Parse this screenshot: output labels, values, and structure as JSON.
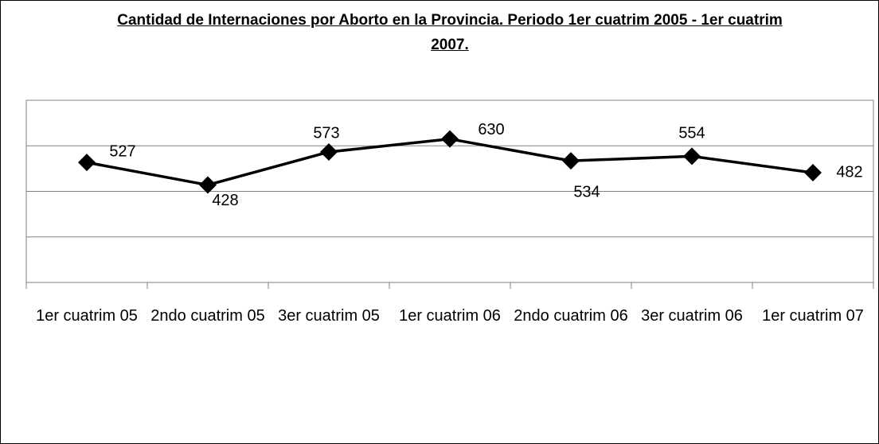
{
  "chart_data": {
    "type": "line",
    "title": "Cantidad de Internaciones por Aborto en la Provincia. Periodo 1er cuatrim 2005 - 1er cuatrim 2007.",
    "categories": [
      "1er cuatrim 05",
      "2ndo cuatrim 05",
      "3er cuatrim 05",
      "1er cuatrim 06",
      "2ndo cuatrim 06",
      "3er cuatrim 06",
      "1er cuatrim 07"
    ],
    "series": [
      {
        "color": "#000000",
        "values": [
          527,
          428,
          573,
          630,
          534,
          554,
          482
        ]
      }
    ],
    "ylim": [
      0,
      800
    ],
    "yticks": [
      0,
      200,
      400,
      600,
      800
    ],
    "grid": true
  }
}
